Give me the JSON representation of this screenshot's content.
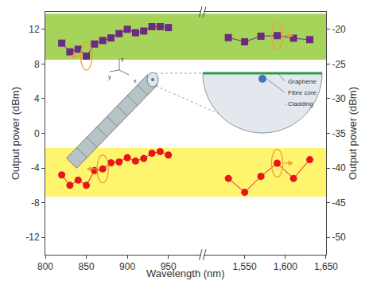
{
  "chart_data": {
    "type": "line",
    "xlabel": "Wavelength (nm)",
    "ylabel": "Output power (dBm)",
    "y2label": "Output power (dBm)",
    "xlim": [
      800,
      990
    ],
    "xticks": [
      800,
      850,
      900,
      950
    ],
    "x2lim": [
      1500,
      1650
    ],
    "x2ticks": [
      {
        "value": 1550,
        "label": "1,550"
      },
      {
        "value": 1600,
        "label": "1,600"
      },
      {
        "value": 1650,
        "label": "1,650"
      }
    ],
    "ylim": [
      -14,
      14
    ],
    "yticks": [
      -12,
      -8,
      -4,
      0,
      4,
      8,
      12
    ],
    "y2lim": [
      -52.5,
      -17.5
    ],
    "y2ticks": [
      -50,
      -45,
      -40,
      -35,
      -30,
      -25,
      -20
    ],
    "grid": false,
    "series": [
      {
        "color": "#6b2c80",
        "marker": "square",
        "x": [
          820,
          830,
          840,
          850,
          860,
          870,
          880,
          890,
          900,
          910,
          920,
          930,
          940,
          950
        ],
        "values": [
          10.4,
          9.4,
          9.7,
          8.9,
          10.3,
          10.7,
          11.0,
          11.5,
          12.0,
          11.6,
          11.8,
          12.3,
          12.3,
          12.2
        ]
      },
      {
        "color": "#6b2c80",
        "marker": "square",
        "axis": "y2",
        "x": [
          1530,
          1550,
          1570,
          1590,
          1610,
          1630
        ],
        "values": [
          -21.2,
          -21.8,
          -21.0,
          -20.9,
          -21.3,
          -21.5
        ]
      },
      {
        "color": "#e8141c",
        "marker": "circle",
        "x": [
          820,
          830,
          840,
          850,
          860,
          870,
          880,
          890,
          900,
          910,
          920,
          930,
          940,
          950
        ],
        "values": [
          -4.8,
          -6.0,
          -5.4,
          -6.0,
          -4.3,
          -4.1,
          -3.4,
          -3.3,
          -2.8,
          -3.2,
          -2.9,
          -2.3,
          -2.1,
          -2.5
        ]
      },
      {
        "color": "#e8141c",
        "marker": "circle",
        "axis": "y2",
        "x": [
          1530,
          1550,
          1570,
          1590,
          1610,
          1630
        ],
        "values": [
          -41.5,
          -43.5,
          -41.2,
          -39.3,
          -41.5,
          -38.8
        ]
      }
    ],
    "bands": [
      {
        "y0": 8.5,
        "y1": 13.8,
        "color": "#a6d35a"
      },
      {
        "y0": -7.3,
        "y1": -1.7,
        "color": "#fff46e"
      }
    ],
    "inset": {
      "labels": [
        "Graphene",
        "Fibre core",
        "Cladding"
      ],
      "axis_labels": [
        "x",
        "y",
        "z"
      ]
    }
  }
}
